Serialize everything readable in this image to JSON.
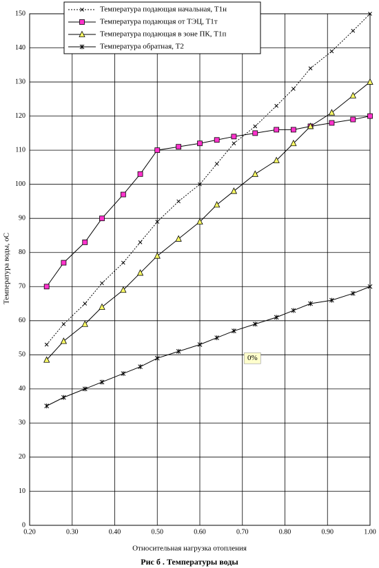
{
  "chart_data": {
    "type": "line",
    "title": "Рис    б  . Температуры воды",
    "xlabel": "Относительная нагрузка отопления",
    "ylabel": "Температура воды, оС",
    "annotation": "0%",
    "x": [
      0.24,
      0.28,
      0.33,
      0.37,
      0.42,
      0.46,
      0.5,
      0.55,
      0.6,
      0.64,
      0.68,
      0.73,
      0.78,
      0.82,
      0.86,
      0.91,
      0.96,
      1.0
    ],
    "series": [
      {
        "name": "Температура подающая начальная, Т1н",
        "color": "#000000",
        "marker": "x",
        "dash": true,
        "marker_fill": "#000000",
        "values": [
          53,
          59,
          65,
          71,
          77,
          83,
          89,
          95,
          100,
          106,
          112,
          117,
          123,
          128,
          134,
          139,
          145,
          150
        ]
      },
      {
        "name": "Температура подающая от ТЭЦ, Т1т",
        "color": "#000000",
        "marker": "square",
        "dash": false,
        "marker_fill": "#ff33cc",
        "values": [
          70,
          77,
          83,
          90,
          97,
          103,
          110,
          111,
          112,
          113,
          114,
          115,
          116,
          116,
          117,
          118,
          119,
          120
        ]
      },
      {
        "name": "Температура подающая в зоне ПК, Т1п",
        "color": "#000000",
        "marker": "triangle",
        "dash": false,
        "marker_fill": "#ffff66",
        "values": [
          48.5,
          54,
          59,
          64,
          69,
          74,
          79,
          84,
          89,
          94,
          98,
          103,
          107,
          112,
          117,
          121,
          126,
          130
        ]
      },
      {
        "name": "Температура обратная, Т2",
        "color": "#000000",
        "marker": "star",
        "dash": false,
        "marker_fill": "#000000",
        "values": [
          35,
          37.5,
          40,
          42,
          44.5,
          46.5,
          49,
          51,
          53,
          55,
          57,
          59,
          61,
          63,
          65,
          66,
          68,
          70
        ]
      }
    ],
    "xlim": [
      0.2,
      1.0
    ],
    "xticks": [
      {
        "value": 0.2,
        "label": "0.20"
      },
      {
        "value": 0.3,
        "label": "0.30"
      },
      {
        "value": 0.4,
        "label": "0.40"
      },
      {
        "value": 0.5,
        "label": "0.50"
      },
      {
        "value": 0.6,
        "label": "0.60"
      },
      {
        "value": 0.7,
        "label": "0.70"
      },
      {
        "value": 0.8,
        "label": "0.80"
      },
      {
        "value": 0.9,
        "label": "0.90"
      },
      {
        "value": 1.0,
        "label": "1.00"
      }
    ],
    "ylim": [
      0,
      150
    ],
    "yticks": [
      0,
      10,
      20,
      30,
      40,
      50,
      60,
      70,
      80,
      90,
      100,
      110,
      120,
      130,
      140,
      150
    ],
    "grid": true,
    "legend": "top-left"
  }
}
